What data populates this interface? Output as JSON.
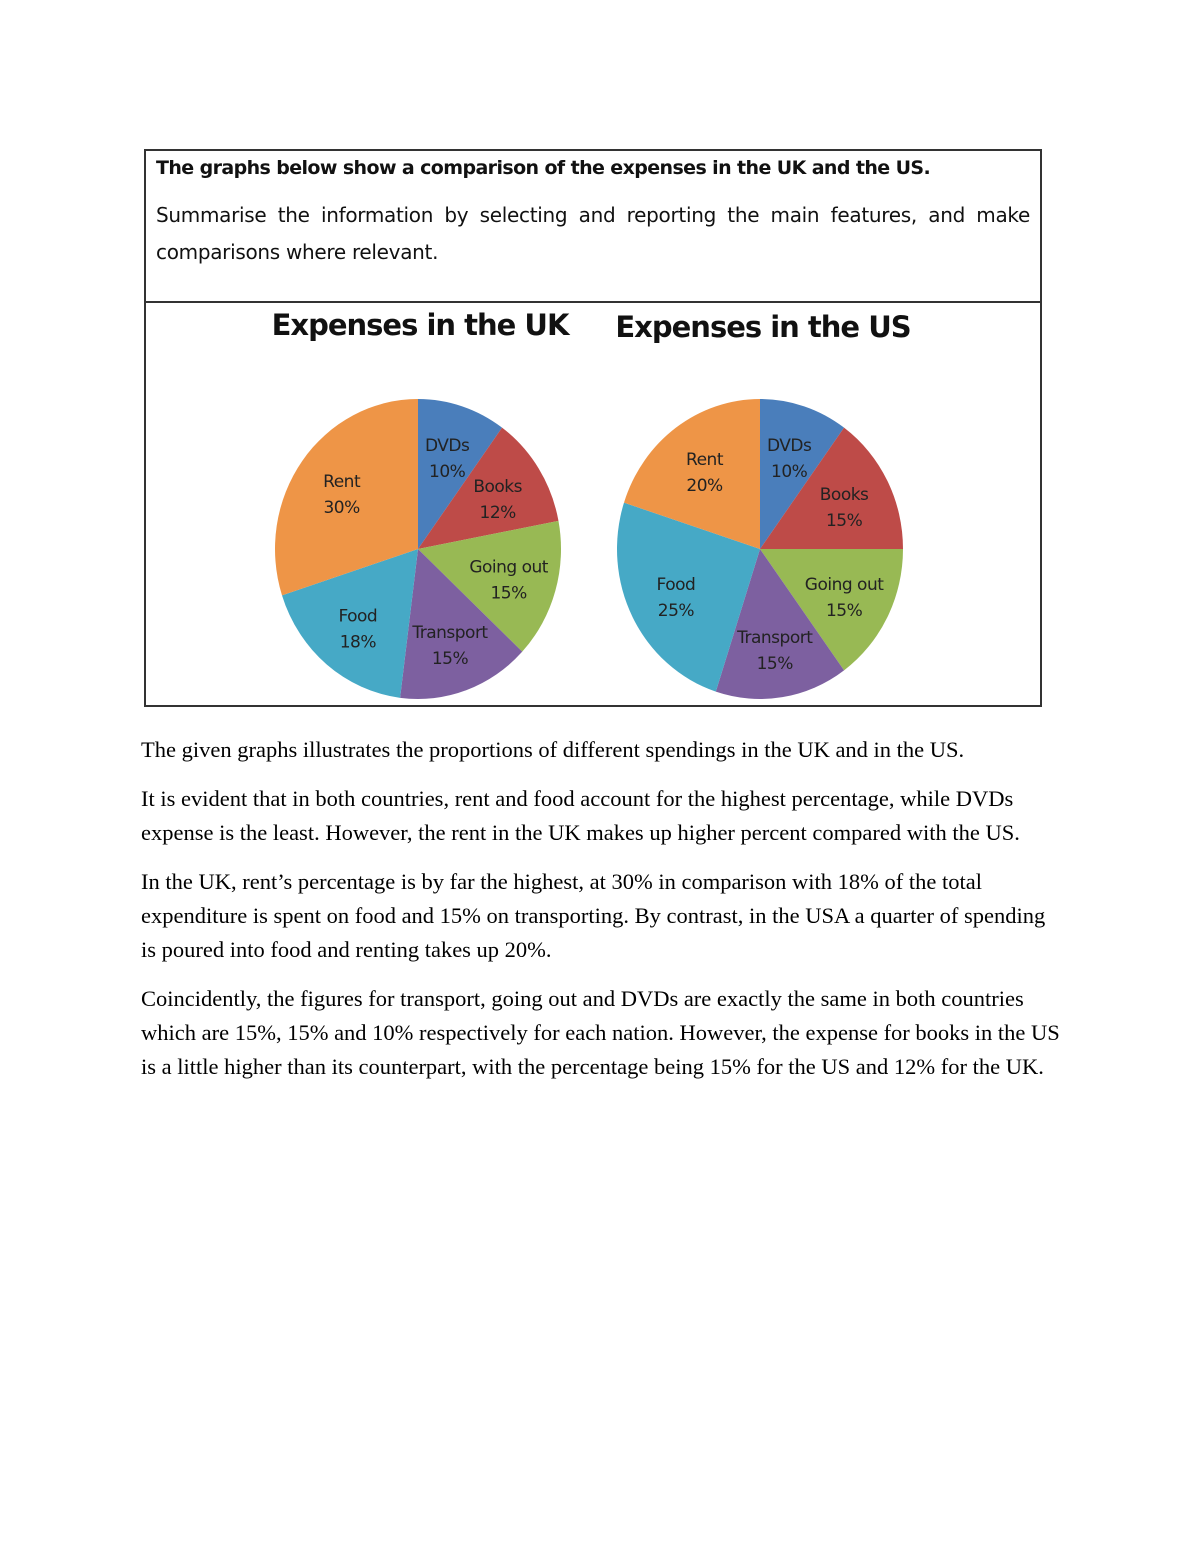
{
  "task": {
    "title": "The graphs below show a comparison of the expenses in the UK and the US.",
    "prompt": "Summarise the information by selecting and reporting the main features, and make comparisons where relevant."
  },
  "chart_data": [
    {
      "type": "pie",
      "title": "Expenses in the UK",
      "categories": [
        "DVDs",
        "Books",
        "Going out",
        "Transport",
        "Food",
        "Rent"
      ],
      "values": [
        10,
        12,
        15,
        15,
        18,
        30
      ],
      "labels": [
        "10%",
        "12%",
        "15%",
        "15%",
        "18%",
        "30%"
      ],
      "colors": [
        "#4a7ebb",
        "#be4b48",
        "#98b954",
        "#7d60a0",
        "#46a9c6",
        "#ee9547"
      ],
      "start": "12 o'clock, clockwise"
    },
    {
      "type": "pie",
      "title": "Expenses in the US",
      "categories": [
        "DVDs",
        "Books",
        "Going out",
        "Transport",
        "Food",
        "Rent"
      ],
      "values": [
        10,
        15,
        15,
        15,
        25,
        20
      ],
      "labels": [
        "10%",
        "15%",
        "15%",
        "15%",
        "25%",
        "20%"
      ],
      "colors": [
        "#4a7ebb",
        "#be4b48",
        "#98b954",
        "#7d60a0",
        "#46a9c6",
        "#ee9547"
      ],
      "start": "12 o'clock, clockwise"
    }
  ],
  "essay": {
    "paragraphs": [
      "The given graphs illustrates the proportions of different spendings in the UK and in the US.",
      "It is evident that in both countries, rent and food account for the highest percentage, while DVDs expense is the least. However, the rent in the UK makes up higher percent compared with the US.",
      "In the UK, rent’s percentage is by far the highest, at 30% in comparison with 18% of the total expenditure is spent on food and 15% on transporting. By contrast, in the USA a quarter of spending is poured into food and renting takes up 20%.",
      "Coincidently, the figures for transport, going out and DVDs are exactly the same in both countries which are 15%, 15% and 10% respectively for each nation. However, the expense for books in the US is a little higher than its counterpart, with the percentage being 15% for the US and 12% for the UK."
    ]
  }
}
